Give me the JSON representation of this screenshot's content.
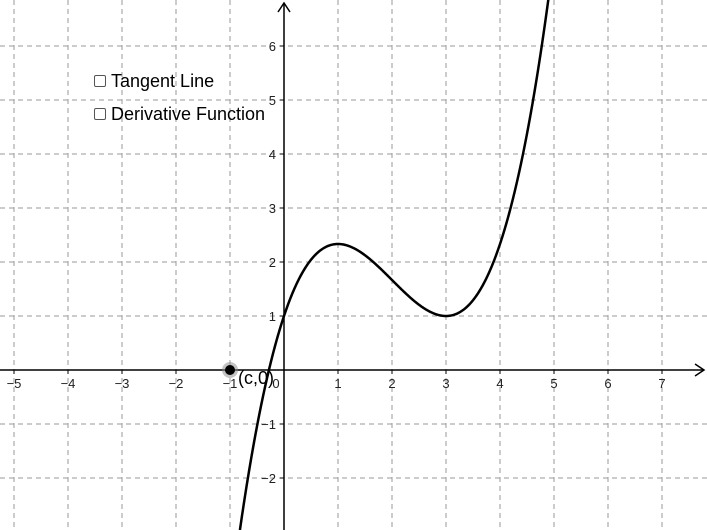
{
  "checkboxes": [
    {
      "label": "Tangent Line",
      "checked": false
    },
    {
      "label": "Derivative Function",
      "checked": false
    }
  ],
  "point_label": "(c,0)",
  "point": {
    "x": -1,
    "y": 0
  },
  "function": {
    "expression": "x^3/3 - 2x^2 + 3x + 1"
  },
  "axes": {
    "x_ticks": [
      "−5",
      "−4",
      "−3",
      "−2",
      "−1",
      "0",
      "1",
      "2",
      "3",
      "4",
      "5",
      "6",
      "7"
    ],
    "y_ticks": [
      "−2",
      "−1",
      "1",
      "2",
      "3",
      "4",
      "5",
      "6"
    ]
  },
  "colors": {
    "curve": "#000000",
    "grid": "#9a9a9a",
    "axis": "#000000",
    "point": "#000000"
  }
}
